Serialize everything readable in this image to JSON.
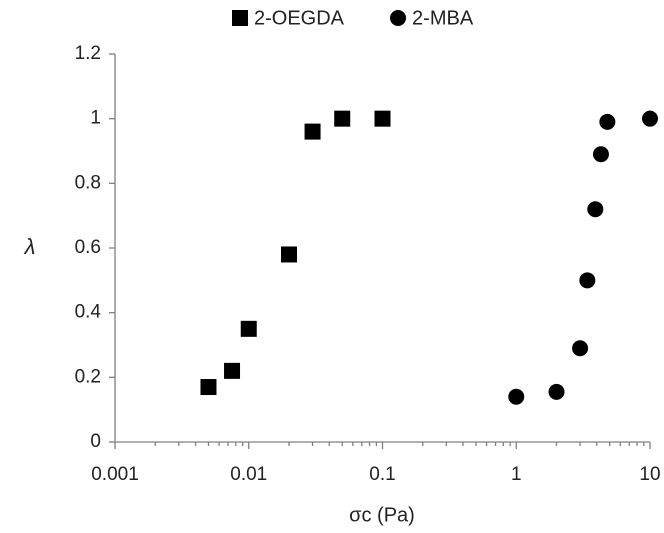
{
  "chart_data": {
    "type": "scatter",
    "x_label": "σc (Pa)",
    "y_label": "λ",
    "x_log": true,
    "legend": "top",
    "xlim": [
      0.001,
      10
    ],
    "xticks": [
      0.001,
      0.01,
      0.1,
      1,
      10
    ],
    "x_minor_ticks": [
      0.002,
      0.003,
      0.004,
      0.005,
      0.006,
      0.007,
      0.008,
      0.009,
      0.02,
      0.03,
      0.04,
      0.05,
      0.06,
      0.07,
      0.08,
      0.09,
      0.2,
      0.3,
      0.4,
      0.5,
      0.6,
      0.7,
      0.8,
      0.9,
      2,
      3,
      4,
      5,
      6,
      7,
      8,
      9
    ],
    "ylim": [
      0,
      1.2
    ],
    "yticks": [
      0,
      0.2,
      0.4,
      0.6,
      0.8,
      1,
      1.2
    ],
    "series": [
      {
        "name": "2-OEGDA",
        "color": "#000000",
        "marker": "square",
        "x": [
          0.005,
          0.0075,
          0.01,
          0.02,
          0.03,
          0.05,
          0.1
        ],
        "values": [
          0.17,
          0.22,
          0.35,
          0.58,
          0.96,
          1.0,
          1.0
        ]
      },
      {
        "name": "2-MBA",
        "color": "#000000",
        "marker": "circle",
        "x": [
          1,
          2,
          3,
          3.4,
          3.9,
          4.3,
          4.8,
          10
        ],
        "values": [
          0.14,
          0.155,
          0.29,
          0.5,
          0.72,
          0.89,
          0.99,
          1.0
        ]
      }
    ]
  }
}
